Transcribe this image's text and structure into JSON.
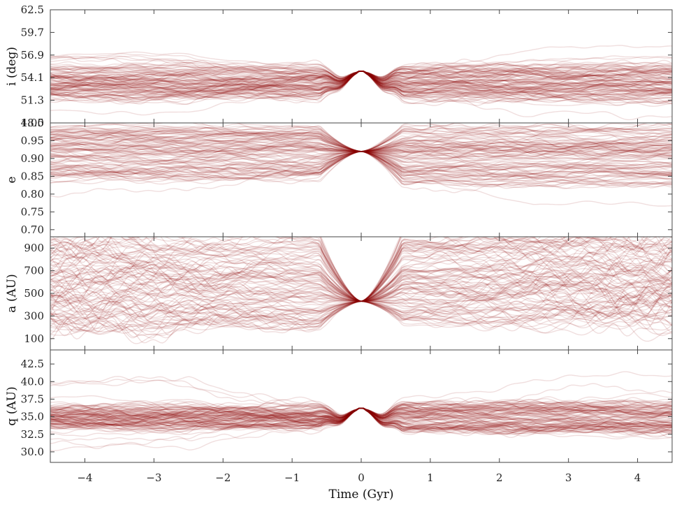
{
  "chart_data": {
    "type": "line",
    "description_free": true,
    "x_axis": {
      "label": "Time (Gyr)",
      "range": [
        -4.5,
        4.5
      ],
      "ticks": [
        -4,
        -3,
        -2,
        -1,
        0,
        1,
        2,
        3,
        4
      ],
      "tick_labels": [
        "−4",
        "−3",
        "−2",
        "−1",
        "0",
        "1",
        "2",
        "3",
        "4"
      ]
    },
    "line_color": "#8b0000",
    "line_opacity": 0.13,
    "panels": [
      {
        "id": "inclination",
        "ylabel": "i (deg)",
        "ylim": [
          48.5,
          62.5
        ],
        "yticks": [
          48.5,
          51.3,
          54.1,
          56.9,
          59.7,
          62.5
        ],
        "ytick_labels": [
          "48.5",
          "51.3",
          "54.1",
          "56.9",
          "59.7",
          "62.5"
        ],
        "model": {
          "pinch_value": 54.9,
          "dip": 1.8,
          "early_band": [
            51.5,
            55.6
          ],
          "late_band": [
            51.3,
            55.7
          ],
          "noise": 0.7,
          "outlier_scale": 2.5
        }
      },
      {
        "id": "eccentricity",
        "ylabel": "e",
        "ylim": [
          0.68,
          1.0
        ],
        "yticks": [
          0.7,
          0.75,
          0.8,
          0.85,
          0.9,
          0.95,
          1.0
        ],
        "ytick_labels": [
          "0.70",
          "0.75",
          "0.80",
          "0.85",
          "0.90",
          "0.95",
          "1.00"
        ],
        "model": {
          "pinch_value": 0.92,
          "dip": 0.0,
          "early_band": [
            0.84,
            0.99
          ],
          "late_band": [
            0.82,
            0.99
          ],
          "noise": 0.015,
          "outlier_scale": 4
        }
      },
      {
        "id": "semi_major_axis",
        "ylabel": "a (AU)",
        "ylim": [
          0,
          1000
        ],
        "yticks": [
          100,
          300,
          500,
          700,
          900
        ],
        "ytick_labels": [
          "100",
          "300",
          "500",
          "700",
          "900"
        ],
        "model": {
          "pinch_value": 430,
          "dip": 0,
          "early_band": [
            200,
            1000
          ],
          "late_band": [
            250,
            1050
          ],
          "noise": 90,
          "outlier_scale": 1.2
        }
      },
      {
        "id": "perihelion",
        "ylabel": "q (AU)",
        "ylim": [
          28.5,
          44.5
        ],
        "yticks": [
          30.0,
          32.5,
          35.0,
          37.5,
          40.0,
          42.5
        ],
        "ytick_labels": [
          "30.0",
          "32.5",
          "35.0",
          "37.5",
          "40.0",
          "42.5"
        ],
        "model": {
          "pinch_value": 36.2,
          "dip": 2.2,
          "early_band": [
            33.3,
            36.6
          ],
          "late_band": [
            32.8,
            37.0
          ],
          "noise": 0.9,
          "outlier_scale": 3
        }
      }
    ],
    "n_trajectories": 110,
    "grid": false,
    "legend": "none"
  }
}
